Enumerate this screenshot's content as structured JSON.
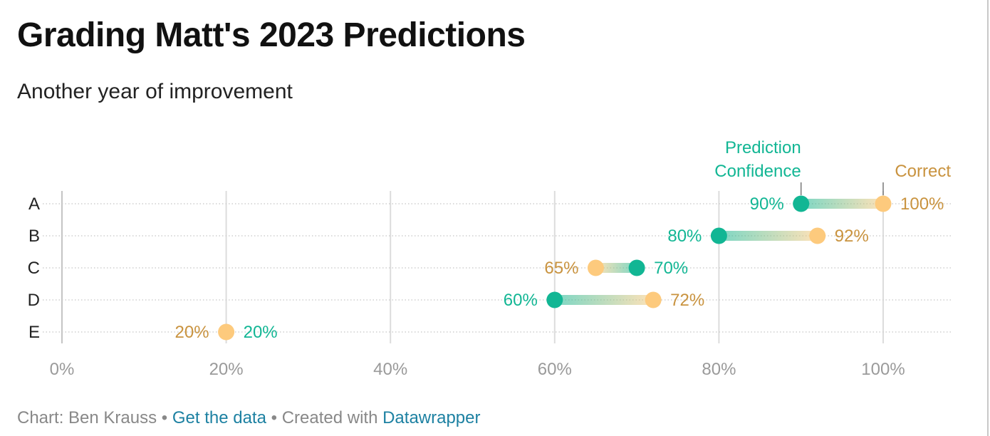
{
  "header": {
    "title": "Grading Matt's 2023 Predictions",
    "subtitle": "Another year of improvement"
  },
  "footer": {
    "prefix": "Chart: Ben Krauss",
    "separator1": " • ",
    "link_data": "Get the data",
    "separator2": " • ",
    "created_with": "Created with ",
    "link_tool": "Datawrapper"
  },
  "colors": {
    "confidence": "#12b694",
    "correct": "#fdca7d",
    "correct_text": "#c9933f",
    "grid": "#dcdcdc",
    "axis_text": "#9a9a9a",
    "category_text": "#222222"
  },
  "chart_data": {
    "type": "dot-range",
    "title": "Grading Matt's 2023 Predictions",
    "subtitle": "Another year of improvement",
    "categories": [
      "A",
      "B",
      "C",
      "D",
      "E"
    ],
    "xlim": [
      0,
      100
    ],
    "xticks": [
      0,
      20,
      40,
      60,
      80,
      100
    ],
    "xtick_labels": [
      "0%",
      "20%",
      "40%",
      "60%",
      "80%",
      "100%"
    ],
    "grid": true,
    "series": [
      {
        "name": "Prediction Confidence",
        "values": [
          90,
          80,
          70,
          60,
          20
        ],
        "labels": [
          "90%",
          "80%",
          "70%",
          "60%",
          "20%"
        ]
      },
      {
        "name": "Correct",
        "values": [
          100,
          92,
          65,
          72,
          20
        ],
        "labels": [
          "100%",
          "92%",
          "65%",
          "72%",
          "20%"
        ]
      }
    ]
  }
}
